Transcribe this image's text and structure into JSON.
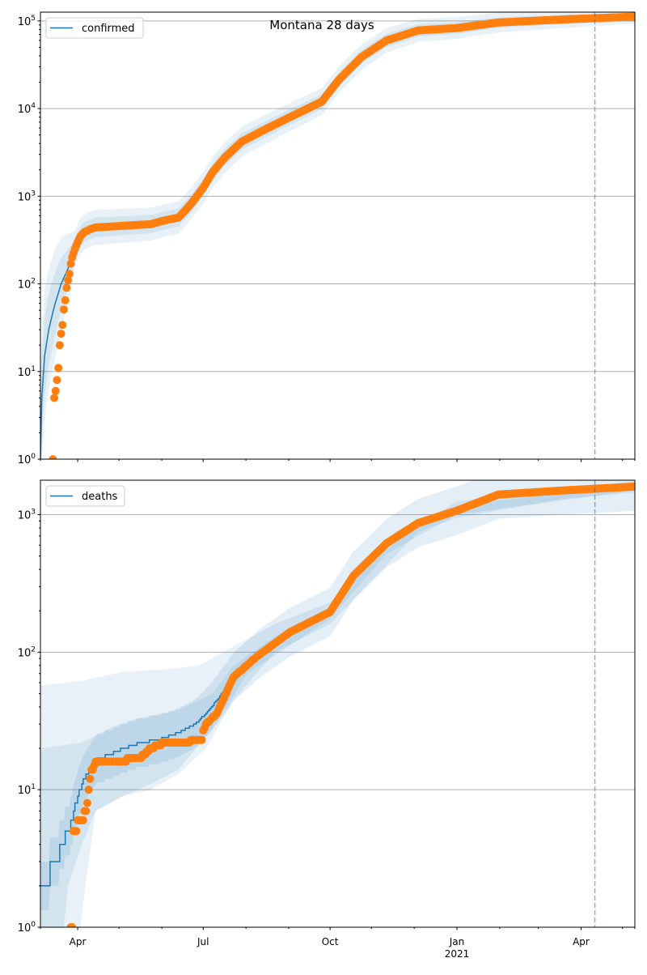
{
  "chart_data": [
    {
      "type": "scatter",
      "title": "Montana 28 days",
      "panel": "confirmed",
      "yscale": "log",
      "ylim": [
        1,
        126000
      ],
      "yticks_exponents": [
        0,
        1,
        2,
        3,
        4,
        5
      ],
      "xlim_days_since_2020_03_05": [
        0,
        431
      ],
      "legend": {
        "label": "confirmed",
        "placement": "top-left"
      },
      "grid": "y-major",
      "observed": [
        [
          9,
          1
        ],
        [
          10,
          5
        ],
        [
          11,
          6
        ],
        [
          12,
          8
        ],
        [
          13,
          10.5
        ],
        [
          14,
          20
        ],
        [
          15,
          27
        ],
        [
          16,
          34
        ],
        [
          17,
          51
        ],
        [
          18,
          65
        ],
        [
          19,
          90
        ],
        [
          20,
          110
        ],
        [
          21,
          130
        ],
        [
          22,
          170
        ],
        [
          23,
          200
        ],
        [
          25,
          250
        ],
        [
          27,
          300
        ],
        [
          29,
          350
        ],
        [
          32,
          390
        ],
        [
          36,
          420
        ],
        [
          40,
          440
        ],
        [
          50,
          450
        ],
        [
          60,
          460
        ],
        [
          70,
          470
        ],
        [
          80,
          480
        ],
        [
          90,
          530
        ],
        [
          100,
          570
        ],
        [
          105,
          690
        ],
        [
          110,
          850
        ],
        [
          118,
          1250
        ],
        [
          125,
          1900
        ],
        [
          134,
          2800
        ],
        [
          146,
          4200
        ],
        [
          163,
          5800
        ],
        [
          181,
          8000
        ],
        [
          204,
          12000
        ],
        [
          216,
          21000
        ],
        [
          233,
          39000
        ],
        [
          251,
          60000
        ],
        [
          274,
          78000
        ],
        [
          302,
          83000
        ],
        [
          332,
          96000
        ],
        [
          379,
          104000
        ],
        [
          431,
          112000
        ]
      ],
      "model": [
        [
          0,
          1
        ],
        [
          1,
          5
        ],
        [
          3,
          15
        ],
        [
          6,
          30
        ],
        [
          10,
          55
        ],
        [
          15,
          100
        ],
        [
          20,
          150
        ],
        [
          23,
          200
        ],
        [
          25,
          250
        ],
        [
          27,
          300
        ],
        [
          29,
          350
        ],
        [
          32,
          390
        ],
        [
          36,
          420
        ],
        [
          40,
          440
        ],
        [
          50,
          450
        ],
        [
          60,
          460
        ],
        [
          70,
          470
        ],
        [
          80,
          480
        ],
        [
          90,
          530
        ],
        [
          100,
          570
        ],
        [
          105,
          690
        ],
        [
          110,
          850
        ],
        [
          118,
          1250
        ],
        [
          125,
          1900
        ],
        [
          134,
          2800
        ],
        [
          146,
          4200
        ],
        [
          163,
          5800
        ],
        [
          181,
          8000
        ],
        [
          204,
          12000
        ],
        [
          216,
          21000
        ],
        [
          233,
          39000
        ],
        [
          251,
          60000
        ],
        [
          274,
          78000
        ],
        [
          302,
          83000
        ],
        [
          332,
          96000
        ],
        [
          379,
          104000
        ],
        [
          431,
          112000
        ]
      ],
      "band_factors": [
        [
          0,
          3,
          6
        ],
        [
          25,
          1.3,
          1.6
        ],
        [
          431,
          1.1,
          1.2
        ]
      ],
      "forecast_start_day": 402
    },
    {
      "type": "scatter",
      "panel": "deaths",
      "yscale": "log",
      "ylim": [
        1,
        1780
      ],
      "yticks_exponents": [
        0,
        1,
        2,
        3
      ],
      "xlim_days_since_2020_03_05": [
        0,
        431
      ],
      "legend": {
        "label": "deaths",
        "placement": "top-left"
      },
      "grid": "y-major",
      "observed": [
        [
          22,
          1
        ],
        [
          23,
          1
        ],
        [
          24,
          5
        ],
        [
          26,
          5
        ],
        [
          27,
          6
        ],
        [
          31,
          6
        ],
        [
          32,
          7
        ],
        [
          33,
          7
        ],
        [
          34,
          8
        ],
        [
          35,
          10
        ],
        [
          36,
          12
        ],
        [
          37,
          14
        ],
        [
          39,
          15
        ],
        [
          40,
          16
        ],
        [
          60,
          16
        ],
        [
          65,
          17
        ],
        [
          72,
          17
        ],
        [
          75,
          18
        ],
        [
          80,
          20
        ],
        [
          90,
          22
        ],
        [
          100,
          22
        ],
        [
          117,
          23
        ],
        [
          118,
          27
        ],
        [
          120,
          30
        ],
        [
          128,
          36
        ],
        [
          140,
          66
        ],
        [
          157,
          93
        ],
        [
          181,
          140
        ],
        [
          210,
          196
        ],
        [
          227,
          360
        ],
        [
          251,
          620
        ],
        [
          274,
          870
        ],
        [
          302,
          1070
        ],
        [
          332,
          1400
        ],
        [
          379,
          1500
        ],
        [
          431,
          1600
        ]
      ],
      "model": [
        [
          0,
          2
        ],
        [
          6,
          2
        ],
        [
          7,
          3
        ],
        [
          13,
          3
        ],
        [
          14,
          4
        ],
        [
          17,
          4
        ],
        [
          18,
          5
        ],
        [
          21,
          5
        ],
        [
          22,
          6
        ],
        [
          24,
          7
        ],
        [
          27,
          9
        ],
        [
          30,
          11
        ],
        [
          33,
          13
        ],
        [
          37,
          15
        ],
        [
          42,
          17
        ],
        [
          50,
          18
        ],
        [
          60,
          20
        ],
        [
          72,
          22
        ],
        [
          85,
          23
        ],
        [
          100,
          26
        ],
        [
          112,
          30
        ],
        [
          120,
          36
        ],
        [
          128,
          45
        ],
        [
          140,
          66
        ],
        [
          160,
          100
        ],
        [
          181,
          140
        ],
        [
          210,
          196
        ],
        [
          227,
          360
        ],
        [
          251,
          620
        ],
        [
          274,
          870
        ],
        [
          302,
          1070
        ],
        [
          332,
          1400
        ],
        [
          379,
          1500
        ],
        [
          431,
          1600
        ]
      ],
      "band_outer_hi": [
        [
          0,
          57
        ],
        [
          30,
          62
        ],
        [
          60,
          72
        ],
        [
          90,
          75
        ],
        [
          115,
          80
        ],
        [
          140,
          110
        ],
        [
          170,
          160
        ],
        [
          210,
          230
        ],
        [
          260,
          700
        ],
        [
          302,
          1250
        ],
        [
          431,
          1750
        ]
      ],
      "band_outer_lo": [
        [
          0,
          1
        ],
        [
          29,
          1
        ],
        [
          31,
          1.5
        ],
        [
          40,
          7
        ],
        [
          60,
          9
        ],
        [
          80,
          10
        ],
        [
          100,
          13
        ],
        [
          120,
          20
        ],
        [
          140,
          45
        ],
        [
          170,
          100
        ],
        [
          210,
          160
        ],
        [
          251,
          430
        ],
        [
          274,
          750
        ],
        [
          302,
          950
        ],
        [
          379,
          1300
        ],
        [
          431,
          1450
        ]
      ],
      "band_mid_hi": [
        [
          0,
          20
        ],
        [
          30,
          22
        ],
        [
          50,
          28
        ],
        [
          70,
          33
        ],
        [
          100,
          38
        ],
        [
          125,
          50
        ],
        [
          140,
          80
        ],
        [
          170,
          130
        ],
        [
          210,
          200
        ],
        [
          250,
          600
        ],
        [
          302,
          1150
        ],
        [
          431,
          1700
        ]
      ],
      "band_mid_lo": [
        [
          0,
          1
        ],
        [
          17,
          1
        ],
        [
          20,
          2
        ],
        [
          30,
          4
        ],
        [
          40,
          7
        ],
        [
          60,
          9
        ],
        [
          80,
          11
        ],
        [
          100,
          14
        ],
        [
          125,
          28
        ],
        [
          150,
          70
        ],
        [
          210,
          175
        ],
        [
          251,
          520
        ],
        [
          302,
          1000
        ],
        [
          431,
          1500
        ]
      ],
      "band_inner_factor": 1.5,
      "forecast_start_day": 402
    }
  ],
  "xaxis": {
    "major": [
      {
        "day": 27,
        "label": "Apr"
      },
      {
        "day": 118,
        "label": "Jul"
      },
      {
        "day": 210,
        "label": "Oct"
      },
      {
        "day": 302,
        "label": "Jan",
        "sub": "2021"
      },
      {
        "day": 392,
        "label": "Apr"
      }
    ],
    "minor_days": [
      0,
      57,
      88,
      149,
      180,
      240,
      271,
      333,
      361,
      422,
      431
    ]
  },
  "colors": {
    "observed": "#ff7f0e",
    "model": "#1f77b4",
    "band": "#1f77b4",
    "grid": "#b0b0b0"
  }
}
